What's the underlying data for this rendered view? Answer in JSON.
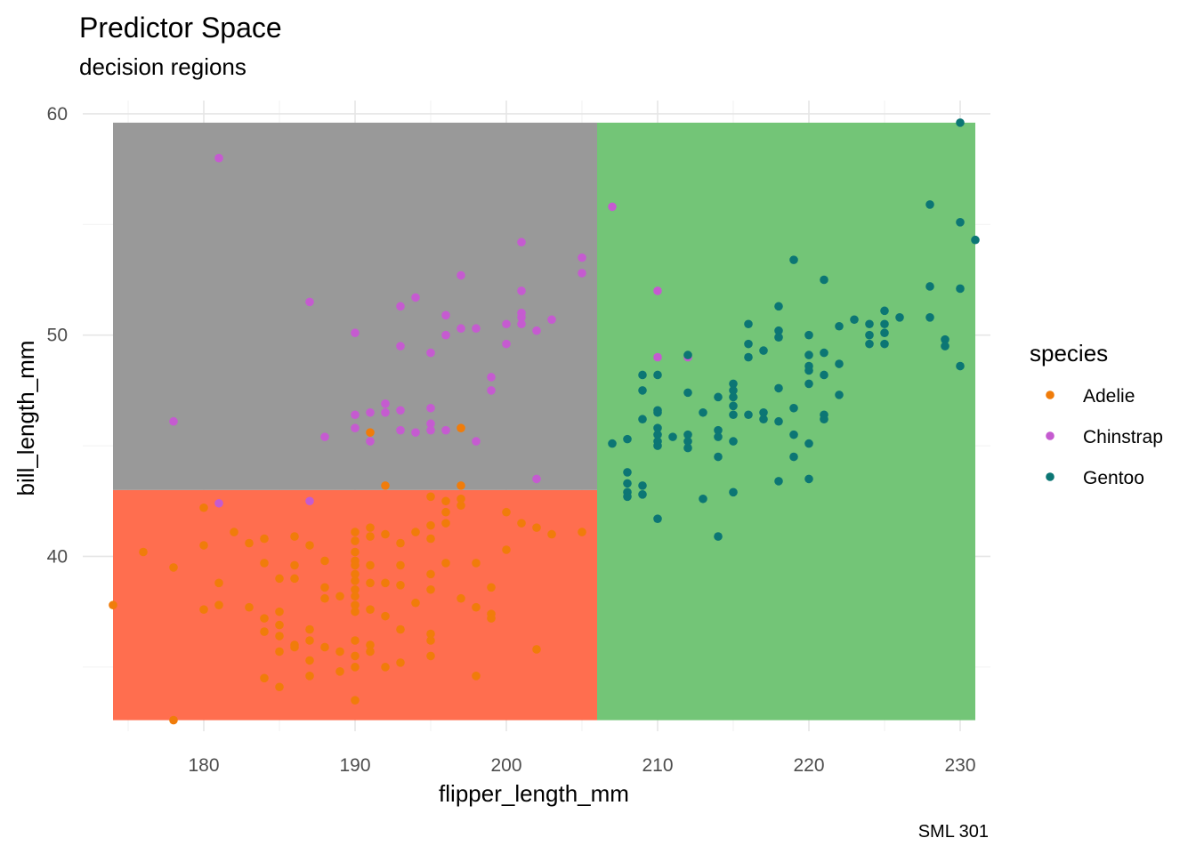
{
  "chart_data": {
    "type": "scatter",
    "title": "Predictor Space",
    "subtitle": "decision regions",
    "xlabel": "flipper_length_mm",
    "ylabel": "bill_length_mm",
    "caption": "SML 301",
    "xlim": [
      172,
      232
    ],
    "ylim": [
      32.1,
      60.6
    ],
    "x_ticks": [
      180,
      190,
      200,
      210,
      220,
      230
    ],
    "y_ticks": [
      40,
      50,
      60
    ],
    "grid": true,
    "legend_title": "species",
    "legend_position": "right",
    "regions": [
      {
        "x": [
          174,
          206
        ],
        "y": [
          32.6,
          43.0
        ],
        "fill": "#FF6E4F"
      },
      {
        "x": [
          174,
          206
        ],
        "y": [
          43.0,
          59.6
        ],
        "fill": "#999999"
      },
      {
        "x": [
          206,
          231
        ],
        "y": [
          32.6,
          59.6
        ],
        "fill": "#73C577"
      }
    ],
    "series": [
      {
        "name": "Adelie",
        "color": "#F07C0A",
        "points": [
          [
            174,
            37.8
          ],
          [
            178,
            32.6
          ],
          [
            176,
            40.2
          ],
          [
            178,
            39.5
          ],
          [
            180,
            42.2
          ],
          [
            180,
            40.5
          ],
          [
            180,
            37.6
          ],
          [
            181,
            38.8
          ],
          [
            181,
            37.8
          ],
          [
            182,
            41.1
          ],
          [
            183,
            40.6
          ],
          [
            183,
            37.7
          ],
          [
            184,
            40.8
          ],
          [
            184,
            39.7
          ],
          [
            184,
            36.6
          ],
          [
            184,
            37.2
          ],
          [
            184,
            34.5
          ],
          [
            185,
            39.0
          ],
          [
            185,
            37.5
          ],
          [
            185,
            36.9
          ],
          [
            185,
            36.4
          ],
          [
            185,
            35.7
          ],
          [
            185,
            34.1
          ],
          [
            186,
            40.9
          ],
          [
            186,
            39.6
          ],
          [
            186,
            39.0
          ],
          [
            186,
            36.0
          ],
          [
            186,
            35.9
          ],
          [
            187,
            40.5
          ],
          [
            187,
            36.7
          ],
          [
            187,
            36.2
          ],
          [
            187,
            35.3
          ],
          [
            187,
            34.6
          ],
          [
            188,
            39.8
          ],
          [
            188,
            38.6
          ],
          [
            188,
            38.1
          ],
          [
            188,
            35.9
          ],
          [
            189,
            38.2
          ],
          [
            189,
            34.8
          ],
          [
            189,
            35.7
          ],
          [
            190,
            41.1
          ],
          [
            190,
            40.7
          ],
          [
            190,
            40.2
          ],
          [
            190,
            39.8
          ],
          [
            190,
            39.6
          ],
          [
            190,
            39.2
          ],
          [
            190,
            38.9
          ],
          [
            190,
            38.5
          ],
          [
            190,
            38.2
          ],
          [
            190,
            37.8
          ],
          [
            190,
            37.5
          ],
          [
            190,
            36.2
          ],
          [
            190,
            35.5
          ],
          [
            190,
            35.0
          ],
          [
            190,
            33.5
          ],
          [
            191,
            45.6
          ],
          [
            191,
            40.9
          ],
          [
            191,
            39.6
          ],
          [
            191,
            38.8
          ],
          [
            191,
            37.6
          ],
          [
            191,
            36.0
          ],
          [
            191,
            35.7
          ],
          [
            191,
            41.3
          ],
          [
            192,
            43.2
          ],
          [
            192,
            41.0
          ],
          [
            192,
            38.8
          ],
          [
            192,
            37.3
          ],
          [
            192,
            35.0
          ],
          [
            193,
            40.6
          ],
          [
            193,
            39.6
          ],
          [
            193,
            38.7
          ],
          [
            193,
            36.7
          ],
          [
            193,
            35.2
          ],
          [
            194,
            41.1
          ],
          [
            194,
            37.9
          ],
          [
            195,
            42.7
          ],
          [
            195,
            41.4
          ],
          [
            195,
            40.8
          ],
          [
            195,
            39.2
          ],
          [
            195,
            38.5
          ],
          [
            195,
            36.5
          ],
          [
            195,
            36.2
          ],
          [
            195,
            35.5
          ],
          [
            196,
            42.5
          ],
          [
            196,
            41.5
          ],
          [
            196,
            39.7
          ],
          [
            196,
            42.0
          ],
          [
            197,
            45.8
          ],
          [
            197,
            43.2
          ],
          [
            197,
            42.6
          ],
          [
            197,
            42.3
          ],
          [
            197,
            38.1
          ],
          [
            198,
            39.7
          ],
          [
            198,
            34.6
          ],
          [
            198,
            37.7
          ],
          [
            199,
            38.6
          ],
          [
            199,
            37.4
          ],
          [
            199,
            37.2
          ],
          [
            200,
            42.0
          ],
          [
            200,
            40.3
          ],
          [
            201,
            41.5
          ],
          [
            202,
            41.3
          ],
          [
            202,
            35.8
          ],
          [
            203,
            41.0
          ],
          [
            205,
            41.1
          ]
        ]
      },
      {
        "name": "Chinstrap",
        "color": "#C55BD0",
        "points": [
          [
            181,
            58.0
          ],
          [
            178,
            46.1
          ],
          [
            181,
            42.4
          ],
          [
            187,
            51.5
          ],
          [
            187,
            42.5
          ],
          [
            188,
            45.4
          ],
          [
            190,
            50.1
          ],
          [
            190,
            46.4
          ],
          [
            190,
            45.8
          ],
          [
            191,
            46.5
          ],
          [
            191,
            45.2
          ],
          [
            192,
            46.9
          ],
          [
            192,
            46.5
          ],
          [
            193,
            51.3
          ],
          [
            193,
            49.5
          ],
          [
            193,
            46.6
          ],
          [
            193,
            45.7
          ],
          [
            194,
            51.7
          ],
          [
            194,
            45.6
          ],
          [
            195,
            49.2
          ],
          [
            195,
            46.7
          ],
          [
            195,
            46.0
          ],
          [
            195,
            45.7
          ],
          [
            196,
            50.9
          ],
          [
            196,
            50.0
          ],
          [
            196,
            45.7
          ],
          [
            197,
            52.7
          ],
          [
            197,
            50.3
          ],
          [
            198,
            50.3
          ],
          [
            198,
            45.2
          ],
          [
            199,
            48.1
          ],
          [
            199,
            47.5
          ],
          [
            200,
            50.5
          ],
          [
            200,
            49.6
          ],
          [
            201,
            54.2
          ],
          [
            201,
            52.0
          ],
          [
            201,
            51.0
          ],
          [
            201,
            50.8
          ],
          [
            201,
            50.5
          ],
          [
            202,
            50.2
          ],
          [
            202,
            43.5
          ],
          [
            203,
            50.7
          ],
          [
            205,
            53.5
          ],
          [
            205,
            52.8
          ],
          [
            207,
            55.8
          ],
          [
            210,
            52.0
          ],
          [
            210,
            49.0
          ],
          [
            212,
            49.0
          ]
        ]
      },
      {
        "name": "Gentoo",
        "color": "#0C7674",
        "points": [
          [
            207,
            45.1
          ],
          [
            208,
            45.3
          ],
          [
            208,
            43.8
          ],
          [
            208,
            43.3
          ],
          [
            208,
            42.9
          ],
          [
            208,
            42.7
          ],
          [
            209,
            48.2
          ],
          [
            209,
            47.5
          ],
          [
            209,
            46.2
          ],
          [
            209,
            43.2
          ],
          [
            209,
            42.8
          ],
          [
            210,
            48.2
          ],
          [
            210,
            46.6
          ],
          [
            210,
            46.5
          ],
          [
            210,
            45.8
          ],
          [
            210,
            45.5
          ],
          [
            210,
            45.2
          ],
          [
            210,
            45.0
          ],
          [
            210,
            41.7
          ],
          [
            211,
            45.4
          ],
          [
            212,
            49.1
          ],
          [
            212,
            47.4
          ],
          [
            212,
            45.5
          ],
          [
            212,
            45.2
          ],
          [
            212,
            44.9
          ],
          [
            213,
            46.5
          ],
          [
            213,
            42.6
          ],
          [
            214,
            47.2
          ],
          [
            214,
            45.7
          ],
          [
            214,
            45.4
          ],
          [
            214,
            44.5
          ],
          [
            214,
            40.9
          ],
          [
            215,
            47.8
          ],
          [
            215,
            47.5
          ],
          [
            215,
            47.2
          ],
          [
            215,
            46.8
          ],
          [
            215,
            46.4
          ],
          [
            215,
            45.2
          ],
          [
            215,
            42.9
          ],
          [
            216,
            50.5
          ],
          [
            216,
            49.6
          ],
          [
            216,
            49.0
          ],
          [
            216,
            46.4
          ],
          [
            217,
            49.3
          ],
          [
            217,
            46.5
          ],
          [
            217,
            46.2
          ],
          [
            218,
            51.3
          ],
          [
            218,
            50.2
          ],
          [
            218,
            49.9
          ],
          [
            218,
            47.6
          ],
          [
            218,
            46.1
          ],
          [
            218,
            43.4
          ],
          [
            219,
            53.4
          ],
          [
            219,
            46.7
          ],
          [
            219,
            45.5
          ],
          [
            219,
            44.5
          ],
          [
            220,
            50.0
          ],
          [
            220,
            49.1
          ],
          [
            220,
            48.6
          ],
          [
            220,
            48.4
          ],
          [
            220,
            47.8
          ],
          [
            220,
            45.1
          ],
          [
            220,
            43.5
          ],
          [
            221,
            52.5
          ],
          [
            221,
            49.2
          ],
          [
            221,
            48.2
          ],
          [
            221,
            46.4
          ],
          [
            221,
            46.2
          ],
          [
            222,
            48.7
          ],
          [
            222,
            50.4
          ],
          [
            222,
            47.3
          ],
          [
            223,
            50.7
          ],
          [
            224,
            50.5
          ],
          [
            224,
            50.0
          ],
          [
            224,
            49.6
          ],
          [
            225,
            51.1
          ],
          [
            225,
            50.5
          ],
          [
            225,
            50.1
          ],
          [
            225,
            49.6
          ],
          [
            226,
            50.8
          ],
          [
            228,
            55.9
          ],
          [
            228,
            52.2
          ],
          [
            228,
            50.8
          ],
          [
            229,
            49.8
          ],
          [
            229,
            49.5
          ],
          [
            230,
            59.6
          ],
          [
            230,
            55.1
          ],
          [
            230,
            52.1
          ],
          [
            230,
            48.6
          ],
          [
            231,
            54.3
          ]
        ]
      }
    ]
  }
}
